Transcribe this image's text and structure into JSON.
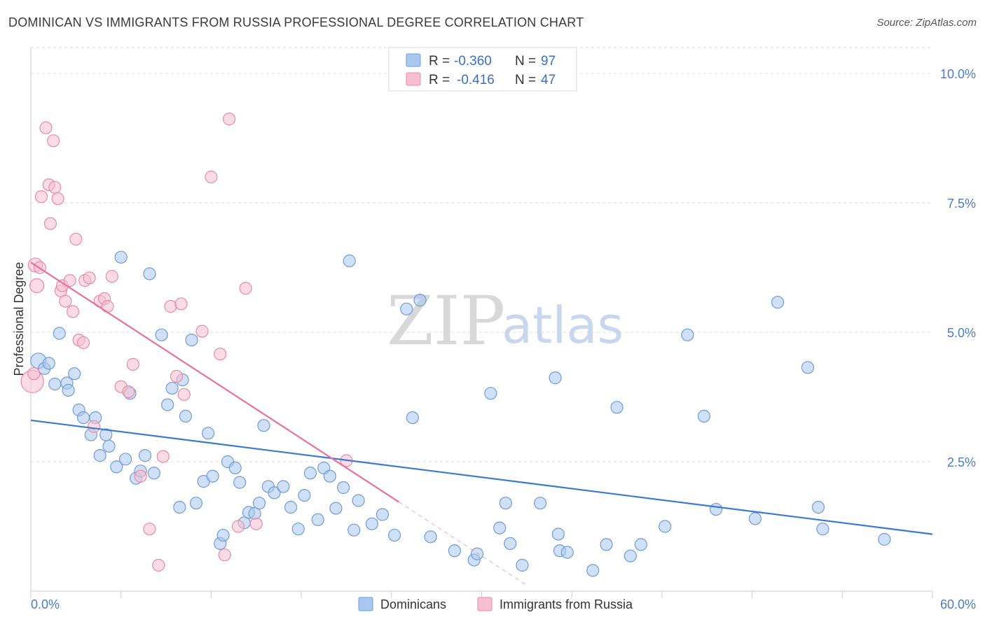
{
  "header": {
    "title": "DOMINICAN VS IMMIGRANTS FROM RUSSIA PROFESSIONAL DEGREE CORRELATION CHART",
    "source": "Source: ZipAtlas.com"
  },
  "watermark": {
    "zip": "ZIP",
    "atlas": "atlas"
  },
  "legend_top": {
    "rows": [
      {
        "r_label": "R =",
        "r_value": "-0.360",
        "n_label": "N =",
        "n_value": "97",
        "color": "#a9c8f0",
        "stroke": "#6f9bd8"
      },
      {
        "r_label": "R =",
        "r_value": "-0.416",
        "n_label": "N =",
        "n_value": "47",
        "color": "#f7bfd0",
        "stroke": "#e88aa8"
      }
    ]
  },
  "legend_bottom": {
    "items": [
      {
        "label": "Dominicans",
        "color": "#a9c8f0",
        "stroke": "#6f9bd8"
      },
      {
        "label": "Immigrants from Russia",
        "color": "#f7bfd0",
        "stroke": "#e88aa8"
      }
    ]
  },
  "chart_data": {
    "type": "scatter",
    "title": "DOMINICAN VS IMMIGRANTS FROM RUSSIA PROFESSIONAL DEGREE CORRELATION CHART",
    "xlabel": "",
    "ylabel": "Professional Degree",
    "xlim": [
      0,
      60
    ],
    "ylim": [
      0,
      10.5
    ],
    "x_tick_labels": [
      "0.0%",
      "60.0%"
    ],
    "y_ticks": [
      2.5,
      5.0,
      7.5,
      10.0
    ],
    "y_tick_labels": [
      "2.5%",
      "5.0%",
      "7.5%",
      "10.0%"
    ],
    "grid": true,
    "legend_position": "top-center",
    "series": [
      {
        "name": "Dominicans",
        "color": "#a9c8f0",
        "stroke": "#6f9bd8",
        "trend": {
          "x": [
            0,
            60
          ],
          "y": [
            3.3,
            1.1
          ],
          "color": "#3a78d4"
        },
        "points": [
          [
            0.5,
            4.45
          ],
          [
            0.9,
            4.3
          ],
          [
            1.2,
            4.4
          ],
          [
            1.6,
            4.0
          ],
          [
            1.9,
            4.98
          ],
          [
            2.4,
            4.02
          ],
          [
            2.5,
            3.88
          ],
          [
            2.9,
            4.2
          ],
          [
            3.2,
            3.5
          ],
          [
            3.5,
            3.35
          ],
          [
            4.0,
            3.02
          ],
          [
            4.3,
            3.35
          ],
          [
            4.6,
            2.62
          ],
          [
            5.0,
            3.02
          ],
          [
            5.2,
            2.8
          ],
          [
            5.7,
            2.4
          ],
          [
            6.0,
            6.45
          ],
          [
            6.3,
            2.55
          ],
          [
            6.6,
            3.82
          ],
          [
            7.0,
            2.18
          ],
          [
            7.3,
            2.32
          ],
          [
            7.6,
            2.62
          ],
          [
            7.9,
            6.13
          ],
          [
            8.2,
            2.28
          ],
          [
            8.7,
            4.95
          ],
          [
            9.1,
            3.6
          ],
          [
            9.4,
            3.92
          ],
          [
            9.9,
            1.62
          ],
          [
            10.1,
            4.08
          ],
          [
            10.3,
            3.38
          ],
          [
            10.7,
            4.85
          ],
          [
            11.0,
            1.7
          ],
          [
            11.5,
            2.12
          ],
          [
            11.8,
            3.05
          ],
          [
            12.1,
            2.22
          ],
          [
            12.6,
            0.92
          ],
          [
            12.8,
            1.08
          ],
          [
            13.1,
            2.5
          ],
          [
            13.6,
            2.38
          ],
          [
            13.9,
            2.1
          ],
          [
            14.2,
            1.32
          ],
          [
            14.5,
            1.52
          ],
          [
            14.9,
            1.5
          ],
          [
            15.2,
            1.7
          ],
          [
            15.5,
            3.2
          ],
          [
            15.8,
            2.02
          ],
          [
            16.2,
            1.9
          ],
          [
            16.8,
            2.02
          ],
          [
            17.3,
            1.62
          ],
          [
            17.8,
            1.2
          ],
          [
            18.2,
            1.85
          ],
          [
            18.6,
            2.28
          ],
          [
            19.1,
            1.38
          ],
          [
            19.5,
            2.38
          ],
          [
            19.9,
            2.22
          ],
          [
            20.3,
            1.6
          ],
          [
            20.8,
            2.0
          ],
          [
            21.2,
            6.38
          ],
          [
            21.5,
            1.18
          ],
          [
            21.8,
            1.75
          ],
          [
            22.7,
            1.3
          ],
          [
            23.4,
            1.48
          ],
          [
            24.2,
            1.08
          ],
          [
            25.0,
            5.45
          ],
          [
            25.4,
            3.35
          ],
          [
            25.9,
            5.62
          ],
          [
            26.6,
            1.05
          ],
          [
            28.2,
            0.78
          ],
          [
            29.5,
            0.6
          ],
          [
            29.7,
            0.72
          ],
          [
            30.6,
            3.82
          ],
          [
            31.2,
            1.22
          ],
          [
            31.6,
            1.7
          ],
          [
            31.9,
            0.92
          ],
          [
            32.7,
            0.5
          ],
          [
            33.9,
            1.7
          ],
          [
            34.9,
            4.12
          ],
          [
            35.1,
            1.1
          ],
          [
            35.2,
            0.78
          ],
          [
            35.7,
            0.75
          ],
          [
            37.4,
            0.4
          ],
          [
            38.3,
            0.9
          ],
          [
            39.0,
            3.55
          ],
          [
            39.9,
            0.68
          ],
          [
            40.6,
            0.9
          ],
          [
            42.2,
            1.25
          ],
          [
            43.7,
            4.95
          ],
          [
            44.8,
            3.38
          ],
          [
            45.6,
            1.58
          ],
          [
            48.2,
            1.4
          ],
          [
            49.7,
            5.58
          ],
          [
            51.7,
            4.32
          ],
          [
            52.4,
            1.62
          ],
          [
            52.7,
            1.2
          ],
          [
            56.8,
            1.0
          ]
        ]
      },
      {
        "name": "Immigrants from Russia",
        "color": "#f7bfd0",
        "stroke": "#e88aa8",
        "trend": {
          "x": [
            0,
            24.5
          ],
          "y": [
            6.35,
            1.72
          ],
          "dash_to_x": 33,
          "color": "#e8709c"
        },
        "points": [
          [
            0.3,
            6.3
          ],
          [
            0.4,
            5.9
          ],
          [
            0.6,
            6.25
          ],
          [
            0.7,
            7.62
          ],
          [
            1.0,
            8.95
          ],
          [
            1.2,
            7.85
          ],
          [
            1.3,
            7.1
          ],
          [
            1.5,
            8.7
          ],
          [
            1.6,
            7.8
          ],
          [
            1.8,
            7.58
          ],
          [
            2.0,
            5.8
          ],
          [
            2.1,
            5.9
          ],
          [
            2.3,
            5.6
          ],
          [
            2.6,
            6.0
          ],
          [
            2.8,
            5.4
          ],
          [
            3.0,
            6.8
          ],
          [
            3.2,
            4.85
          ],
          [
            3.5,
            4.8
          ],
          [
            3.6,
            6.0
          ],
          [
            3.9,
            6.05
          ],
          [
            4.2,
            3.18
          ],
          [
            4.6,
            5.6
          ],
          [
            4.9,
            5.65
          ],
          [
            5.1,
            5.5
          ],
          [
            5.4,
            6.08
          ],
          [
            6.0,
            3.95
          ],
          [
            6.5,
            3.85
          ],
          [
            6.8,
            4.38
          ],
          [
            7.3,
            2.22
          ],
          [
            7.9,
            1.2
          ],
          [
            8.5,
            0.5
          ],
          [
            8.8,
            2.6
          ],
          [
            9.3,
            5.5
          ],
          [
            9.7,
            4.15
          ],
          [
            10.0,
            5.55
          ],
          [
            10.2,
            3.8
          ],
          [
            11.4,
            5.02
          ],
          [
            12.0,
            8.0
          ],
          [
            12.6,
            4.58
          ],
          [
            12.9,
            0.7
          ],
          [
            13.2,
            9.12
          ],
          [
            13.8,
            1.25
          ],
          [
            14.3,
            5.85
          ],
          [
            15.0,
            1.3
          ],
          [
            21.0,
            2.52
          ],
          [
            0.1,
            4.05
          ],
          [
            0.2,
            4.2
          ]
        ]
      }
    ]
  }
}
